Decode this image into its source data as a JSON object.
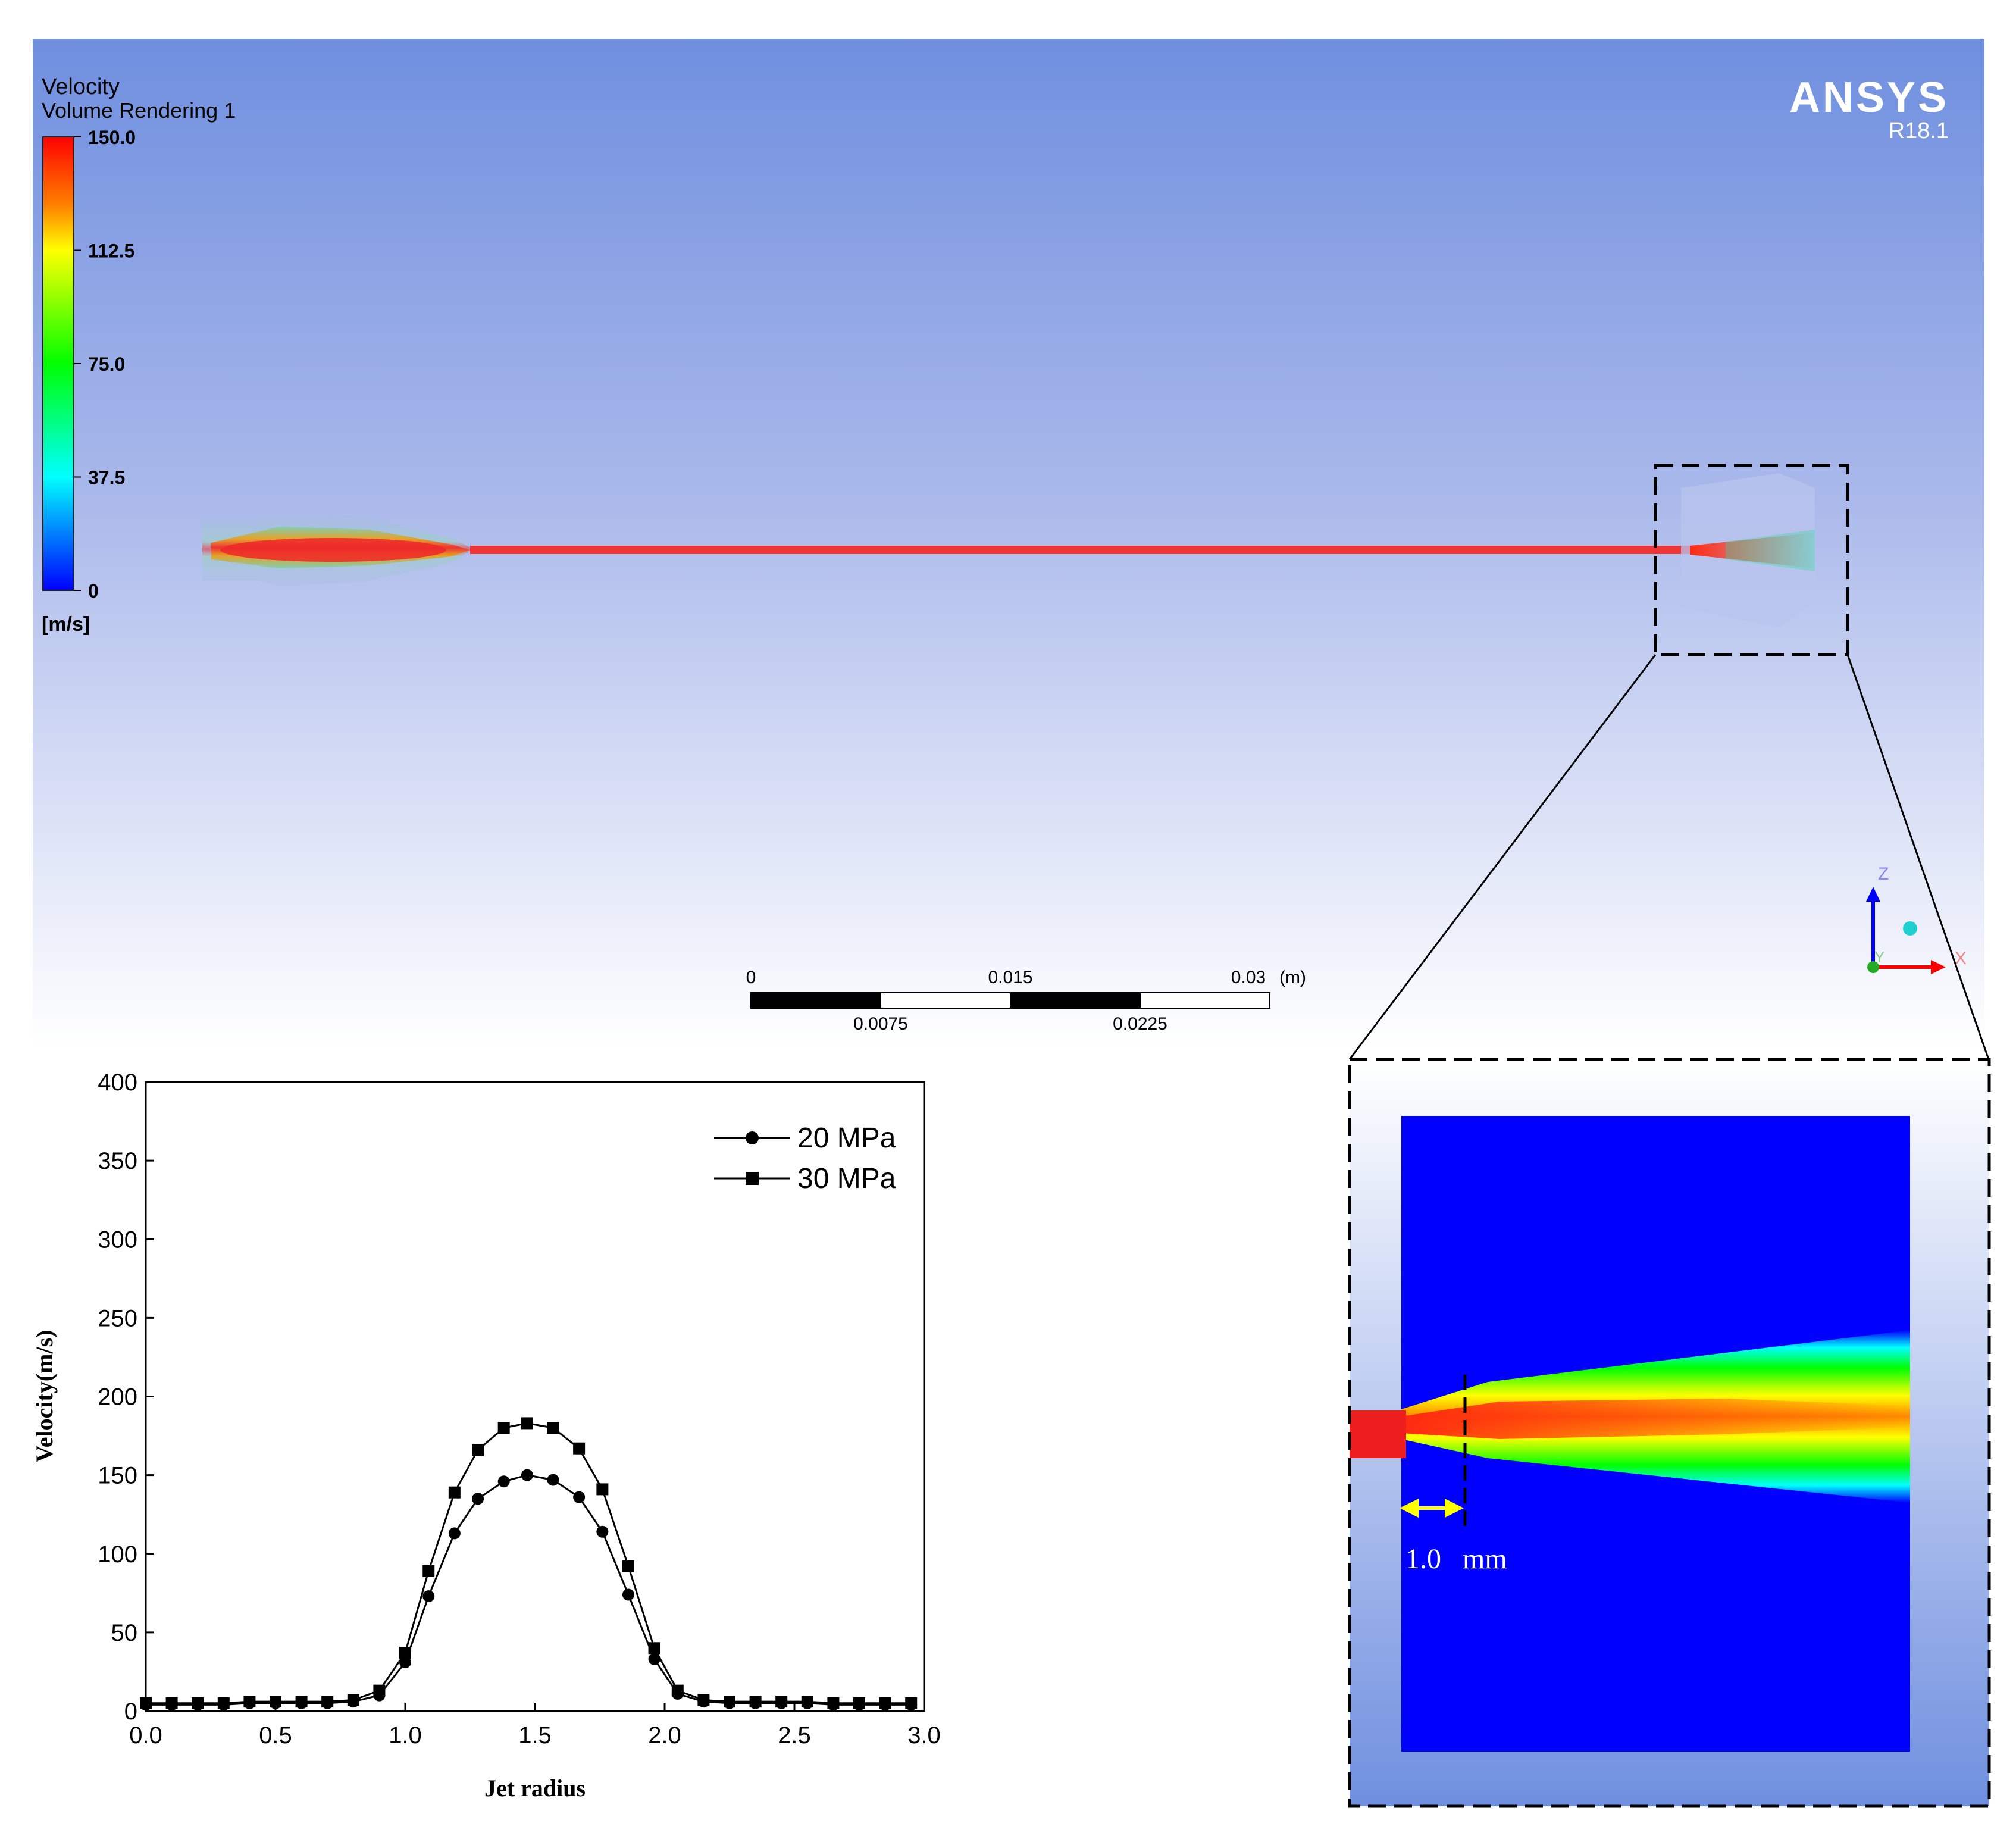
{
  "legend": {
    "title": "Velocity",
    "subtitle": "Volume Rendering 1",
    "ticks": [
      "150.0",
      "112.5",
      "75.0",
      "37.5",
      "0"
    ],
    "unit": "[m/s]"
  },
  "brand": {
    "name": "ANSYS",
    "version": "R18.1"
  },
  "scale_bar": {
    "top_labels": [
      "0",
      "0.015",
      "0.03"
    ],
    "unit": "(m)",
    "bottom_labels": [
      "0.0075",
      "0.0225"
    ]
  },
  "triad": {
    "z": "Z",
    "y": "Y",
    "x": "X"
  },
  "zoom": {
    "length_label": "1.0   mm"
  },
  "colors": {
    "bg_top": "#6f8fdf",
    "bg_bottom": "#ffffff",
    "jet": "#ee3030",
    "zoom_field": "#0000ff",
    "arrow": "#ffff00"
  },
  "chart_data": {
    "type": "line",
    "xlabel": "Jet radius",
    "ylabel": "Velocity(m/s)",
    "xlim": [
      0,
      3.0
    ],
    "ylim": [
      0,
      400
    ],
    "xticks": [
      "0.0",
      "0.5",
      "1.0",
      "1.5",
      "2.0",
      "2.5",
      "3.0"
    ],
    "yticks": [
      "0",
      "50",
      "100",
      "150",
      "200",
      "250",
      "300",
      "350",
      "400"
    ],
    "legend_position": "top-right",
    "x": [
      0.0,
      0.1,
      0.2,
      0.3,
      0.4,
      0.5,
      0.6,
      0.7,
      0.8,
      0.9,
      1.0,
      1.09,
      1.19,
      1.28,
      1.38,
      1.47,
      1.57,
      1.67,
      1.76,
      1.86,
      1.96,
      2.05,
      2.15,
      2.25,
      2.35,
      2.45,
      2.55,
      2.65,
      2.75,
      2.85,
      2.95
    ],
    "series": [
      {
        "name": "20 MPa",
        "marker": "circle",
        "values": [
          4,
          4,
          4,
          4,
          5,
          5,
          5,
          5,
          6,
          10,
          31,
          73,
          113,
          135,
          146,
          150,
          147,
          136,
          114,
          74,
          33,
          11,
          6,
          5,
          5,
          5,
          5,
          4,
          4,
          4,
          4
        ]
      },
      {
        "name": "30 MPa",
        "marker": "square",
        "values": [
          5,
          5,
          5,
          5,
          6,
          6,
          6,
          6,
          7,
          13,
          37,
          89,
          139,
          166,
          180,
          183,
          180,
          167,
          141,
          92,
          40,
          13,
          7,
          6,
          6,
          6,
          6,
          5,
          5,
          5,
          5
        ]
      }
    ]
  }
}
